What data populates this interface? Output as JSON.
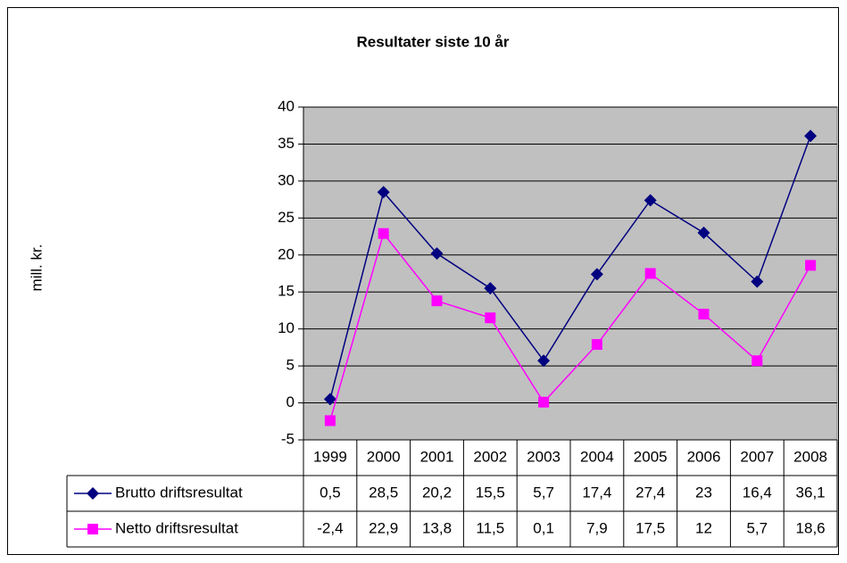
{
  "chart_data": {
    "type": "line",
    "title": "Resultater siste 10 år",
    "y_label": "mill. kr.",
    "categories": [
      "1999",
      "2000",
      "2001",
      "2002",
      "2003",
      "2004",
      "2005",
      "2006",
      "2007",
      "2008"
    ],
    "series": [
      {
        "name": "Brutto driftsresultat",
        "color": "#000080",
        "marker": "diamond",
        "values": [
          0.5,
          28.5,
          20.2,
          15.5,
          5.7,
          17.4,
          27.4,
          23,
          16.4,
          36.1
        ],
        "value_labels": [
          "0,5",
          "28,5",
          "20,2",
          "15,5",
          "5,7",
          "17,4",
          "27,4",
          "23",
          "16,4",
          "36,1"
        ]
      },
      {
        "name": "Netto driftsresultat",
        "color": "#FF00FF",
        "marker": "square",
        "values": [
          -2.4,
          22.9,
          13.8,
          11.5,
          0.1,
          7.9,
          17.5,
          12,
          5.7,
          18.6
        ],
        "value_labels": [
          "-2,4",
          "22,9",
          "13,8",
          "11,5",
          "0,1",
          "7,9",
          "17,5",
          "12",
          "5,7",
          "18,6"
        ]
      }
    ],
    "ylim": [
      -5,
      40
    ],
    "yticks": [
      -5,
      0,
      5,
      10,
      15,
      20,
      25,
      30,
      35,
      40
    ],
    "grid": true,
    "plot_background": "#C0C0C0"
  }
}
